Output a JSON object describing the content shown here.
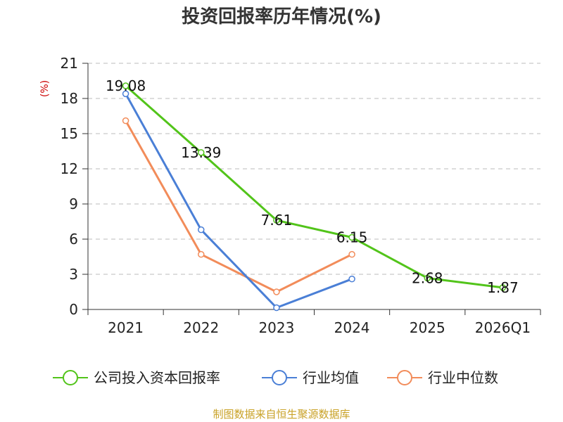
{
  "chart_data": {
    "type": "line",
    "title": "投资回报率历年情况(%)",
    "ylabel": "(%)",
    "xlabel": "",
    "categories": [
      "2021",
      "2022",
      "2023",
      "2024",
      "2025",
      "2026Q1"
    ],
    "ylim": [
      0,
      21
    ],
    "yticks": [
      0,
      3,
      6,
      9,
      12,
      15,
      18,
      21
    ],
    "grid": true,
    "legend_position": "bottom",
    "series": [
      {
        "name": "公司投入资本回报率",
        "color": "#52c41a",
        "labeled": true,
        "values": [
          19.08,
          13.39,
          7.61,
          6.15,
          2.68,
          1.87
        ],
        "labels": [
          "19.08",
          "13.39",
          "7.61",
          "6.15",
          "2.68",
          "1.87"
        ]
      },
      {
        "name": "行业均值",
        "color": "#4a7fd6",
        "labeled": false,
        "values": [
          18.4,
          6.8,
          0.15,
          2.6,
          null,
          null
        ]
      },
      {
        "name": "行业中位数",
        "color": "#f28c5a",
        "labeled": false,
        "values": [
          16.1,
          4.7,
          1.5,
          4.7,
          null,
          null
        ]
      }
    ],
    "source": "制图数据来自恒生聚源数据库"
  }
}
